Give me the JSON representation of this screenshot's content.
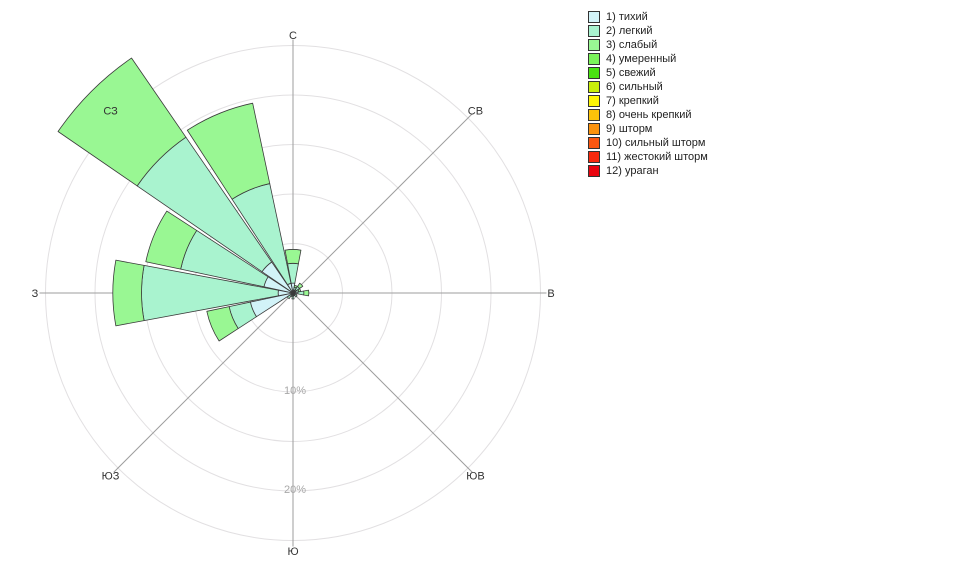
{
  "page": {
    "background": "#ffffff"
  },
  "chart_data": {
    "type": "windrose",
    "title": "",
    "units": "%",
    "grid": true,
    "ring_step_pct": 5,
    "max_ring_pct": 25,
    "petal_width_deg": 21,
    "ring_labels": [
      {
        "text": "10%",
        "pct": 10
      },
      {
        "text": "20%",
        "pct": 20
      }
    ],
    "compass": [
      {
        "label": "С",
        "angle": 0
      },
      {
        "label": "СВ",
        "angle": 45
      },
      {
        "label": "В",
        "angle": 90
      },
      {
        "label": "ЮВ",
        "angle": 135
      },
      {
        "label": "Ю",
        "angle": 180
      },
      {
        "label": "ЮЗ",
        "angle": 225
      },
      {
        "label": "З",
        "angle": 270
      },
      {
        "label": "СЗ",
        "angle": 315
      }
    ],
    "legend": [
      {
        "label": "1) тихий",
        "category": "тихий",
        "color": "#d2f3f8"
      },
      {
        "label": "2) легкий",
        "category": "легкий",
        "color": "#a9f3cf"
      },
      {
        "label": "3) слабый",
        "category": "слабый",
        "color": "#99f793"
      },
      {
        "label": "4) умеренный",
        "category": "умеренный",
        "color": "#7bf35a"
      },
      {
        "label": "5) свежий",
        "category": "свежий",
        "color": "#49e312"
      },
      {
        "label": "6) сильный",
        "category": "сильный",
        "color": "#c8ee0b"
      },
      {
        "label": "7) крепкий",
        "category": "крепкий",
        "color": "#fdf506"
      },
      {
        "label": "8) очень крепкий",
        "category": "очень крепкий",
        "color": "#fcc30a"
      },
      {
        "label": "9) шторм",
        "category": "шторм",
        "color": "#fb930e"
      },
      {
        "label": "10) сильный шторм",
        "category": "сильный шторм",
        "color": "#fa5711"
      },
      {
        "label": "11) жестокий шторм",
        "category": "жестокий шторм",
        "color": "#f82a0e"
      },
      {
        "label": "12) ураган",
        "category": "ураган",
        "color": "#e9050f"
      }
    ],
    "petals": [
      {
        "direction": "С",
        "angle": 0.0,
        "segments": [
          {
            "category": "тихий",
            "pct": 1.0
          },
          {
            "category": "легкий",
            "pct": 2.0
          },
          {
            "category": "слабый",
            "pct": 1.4
          }
        ]
      },
      {
        "direction": "ССВ",
        "angle": 22.5,
        "segments": [
          {
            "category": "тихий",
            "pct": 0.3
          },
          {
            "category": "легкий",
            "pct": 0.3
          },
          {
            "category": "слабый",
            "pct": 0.2
          }
        ]
      },
      {
        "direction": "СВ",
        "angle": 45.0,
        "segments": [
          {
            "category": "тихий",
            "pct": 0.4
          },
          {
            "category": "легкий",
            "pct": 0.4
          },
          {
            "category": "слабый",
            "pct": 0.4
          }
        ]
      },
      {
        "direction": "ВСВ",
        "angle": 67.5,
        "segments": [
          {
            "category": "тихий",
            "pct": 0.3
          },
          {
            "category": "легкий",
            "pct": 0.3
          },
          {
            "category": "слабый",
            "pct": 0.2
          }
        ]
      },
      {
        "direction": "В",
        "angle": 90.0,
        "segments": [
          {
            "category": "тихий",
            "pct": 0.5
          },
          {
            "category": "легкий",
            "pct": 0.6
          },
          {
            "category": "слабый",
            "pct": 0.5
          }
        ]
      },
      {
        "direction": "ВЮВ",
        "angle": 112.5,
        "segments": [
          {
            "category": "тихий",
            "pct": 0.2
          },
          {
            "category": "легкий",
            "pct": 0.2
          }
        ]
      },
      {
        "direction": "ЮВ",
        "angle": 135.0,
        "segments": [
          {
            "category": "тихий",
            "pct": 0.2
          },
          {
            "category": "легкий",
            "pct": 0.3
          }
        ]
      },
      {
        "direction": "ЮЮВ",
        "angle": 157.5,
        "segments": [
          {
            "category": "тихий",
            "pct": 0.3
          }
        ]
      },
      {
        "direction": "Ю",
        "angle": 180.0,
        "segments": [
          {
            "category": "тихий",
            "pct": 0.3
          },
          {
            "category": "легкий",
            "pct": 0.3
          }
        ]
      },
      {
        "direction": "ЮЮЗ",
        "angle": 202.5,
        "segments": [
          {
            "category": "тихий",
            "pct": 0.2
          },
          {
            "category": "легкий",
            "pct": 0.2
          }
        ]
      },
      {
        "direction": "ЮЗ",
        "angle": 225.0,
        "segments": [
          {
            "category": "тихий",
            "pct": 0.3
          },
          {
            "category": "легкий",
            "pct": 0.4
          }
        ]
      },
      {
        "direction": "ЗЮЗ",
        "angle": 247.5,
        "segments": [
          {
            "category": "тихий",
            "pct": 4.4
          },
          {
            "category": "легкий",
            "pct": 2.2
          },
          {
            "category": "слабый",
            "pct": 2.3
          }
        ]
      },
      {
        "direction": "З",
        "angle": 270.0,
        "segments": [
          {
            "category": "тихий",
            "pct": 1.5
          },
          {
            "category": "легкий",
            "pct": 13.8
          },
          {
            "category": "слабый",
            "pct": 2.9
          }
        ]
      },
      {
        "direction": "ЗСЗ",
        "angle": 292.5,
        "segments": [
          {
            "category": "тихий",
            "pct": 3.0
          },
          {
            "category": "легкий",
            "pct": 8.6
          },
          {
            "category": "слабый",
            "pct": 3.6
          }
        ]
      },
      {
        "direction": "СЗ",
        "angle": 315.0,
        "segments": [
          {
            "category": "тихий",
            "pct": 3.8
          },
          {
            "category": "легкий",
            "pct": 15.3
          },
          {
            "category": "слабый",
            "pct": 9.7
          }
        ]
      },
      {
        "direction": "ССЗ",
        "angle": 337.5,
        "segments": [
          {
            "category": "тихий",
            "pct": 1.0
          },
          {
            "category": "легкий",
            "pct": 10.3
          },
          {
            "category": "слабый",
            "pct": 8.3
          }
        ]
      }
    ]
  },
  "colors": {
    "ring": "#e2e0e2",
    "spoke": "#9e9e9e",
    "segment_border": "#3a3a3a",
    "ring_label": "#a8a8a8",
    "compass_label": "#333333"
  }
}
